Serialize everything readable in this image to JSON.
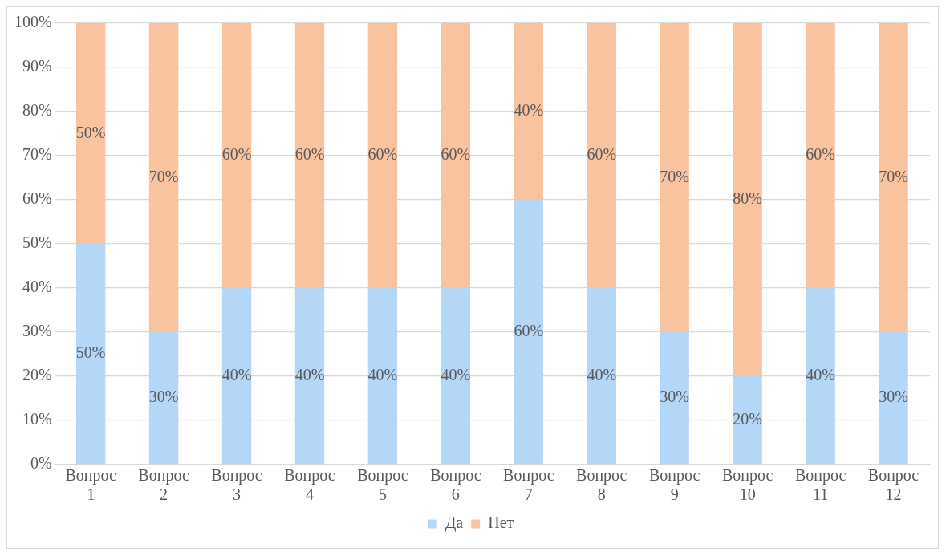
{
  "chart_data": {
    "type": "bar",
    "stacked": true,
    "categories": [
      "Вопрос 1",
      "Вопрос 2",
      "Вопрос 3",
      "Вопрос 4",
      "Вопрос 5",
      "Вопрос 6",
      "Вопрос 7",
      "Вопрос 8",
      "Вопрос 9",
      "Вопрос 10",
      "Вопрос 11",
      "Вопрос 12"
    ],
    "series": [
      {
        "name": "Да",
        "color": "#b4d6f7",
        "values": [
          50,
          30,
          40,
          40,
          40,
          40,
          60,
          40,
          30,
          20,
          40,
          30
        ],
        "value_labels": [
          "50%",
          "30%",
          "40%",
          "40%",
          "40%",
          "40%",
          "60%",
          "40%",
          "30%",
          "20%",
          "40%",
          "30%"
        ]
      },
      {
        "name": "Нет",
        "color": "#fac3a0",
        "values": [
          50,
          70,
          60,
          60,
          60,
          60,
          40,
          60,
          70,
          80,
          60,
          70
        ],
        "value_labels": [
          "50%",
          "70%",
          "60%",
          "60%",
          "60%",
          "60%",
          "40%",
          "60%",
          "70%",
          "80%",
          "60%",
          "70%"
        ]
      }
    ],
    "ylim": [
      0,
      100
    ],
    "yticks": [
      {
        "value": 0,
        "label": "0%"
      },
      {
        "value": 10,
        "label": "10%"
      },
      {
        "value": 20,
        "label": "20%"
      },
      {
        "value": 30,
        "label": "30%"
      },
      {
        "value": 40,
        "label": "40%"
      },
      {
        "value": 50,
        "label": "50%"
      },
      {
        "value": 60,
        "label": "60%"
      },
      {
        "value": 70,
        "label": "70%"
      },
      {
        "value": 80,
        "label": "80%"
      },
      {
        "value": 90,
        "label": "90%"
      },
      {
        "value": 100,
        "label": "100%"
      }
    ],
    "grid": "y",
    "legend": "bottom"
  }
}
